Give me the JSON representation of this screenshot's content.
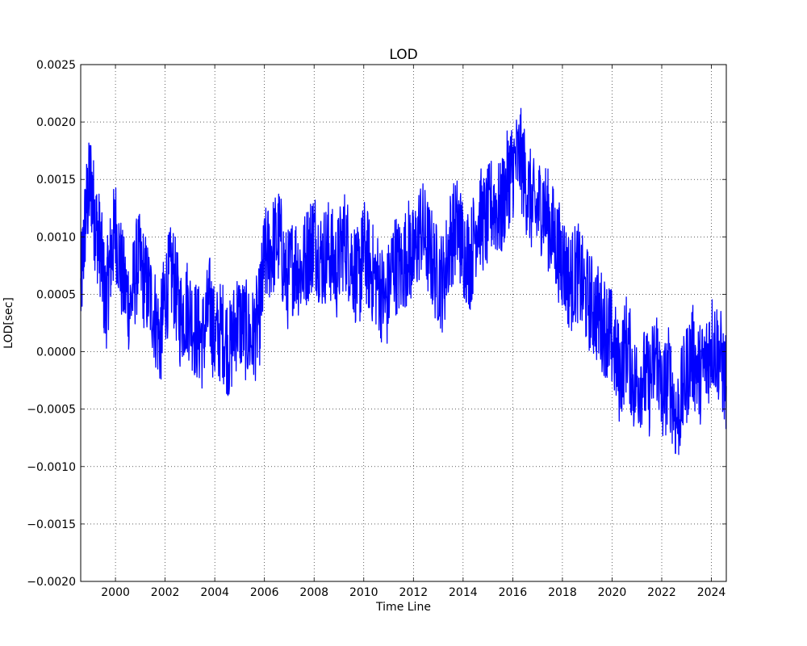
{
  "chart_data": {
    "type": "line",
    "title": "LOD",
    "xlabel": "Time Line",
    "ylabel": "LOD[sec]",
    "xlim": [
      1998.6,
      2024.6
    ],
    "ylim": [
      -0.002,
      0.0025
    ],
    "xticks": [
      2000,
      2002,
      2004,
      2006,
      2008,
      2010,
      2012,
      2014,
      2016,
      2018,
      2020,
      2022,
      2024
    ],
    "xtick_labels": [
      "2000",
      "2002",
      "2004",
      "2006",
      "2008",
      "2010",
      "2012",
      "2014",
      "2016",
      "2018",
      "2020",
      "2022",
      "2024"
    ],
    "yticks": [
      -0.002,
      -0.0015,
      -0.001,
      -0.0005,
      0.0,
      0.0005,
      0.001,
      0.0015,
      0.002,
      0.0025
    ],
    "ytick_labels": [
      "−0.0020",
      "−0.0015",
      "−0.0010",
      "−0.0005",
      "0.0000",
      "0.0005",
      "0.0010",
      "0.0015",
      "0.0020",
      "0.0025"
    ],
    "grid": true,
    "line_color": "#0000ff",
    "series": [
      {
        "x": [
          1998.6,
          1998.8,
          1999.0,
          1999.2,
          1999.4,
          1999.6,
          1999.8,
          2000.0,
          2000.3,
          2000.6,
          2000.9,
          2001.2,
          2001.5,
          2001.8,
          2002.0,
          2002.3,
          2002.6,
          2002.9,
          2003.2,
          2003.5,
          2003.8,
          2004.0,
          2004.3,
          2004.6,
          2004.9,
          2005.2,
          2005.5,
          2005.8,
          2006.0,
          2006.3,
          2006.6,
          2006.9,
          2007.2,
          2007.5,
          2007.8,
          2008.0,
          2008.3,
          2008.6,
          2008.9,
          2009.2,
          2009.5,
          2009.8,
          2010.0,
          2010.3,
          2010.6,
          2010.9,
          2011.2,
          2011.5,
          2011.8,
          2012.0,
          2012.3,
          2012.6,
          2012.9,
          2013.2,
          2013.5,
          2013.8,
          2014.0,
          2014.3,
          2014.6,
          2014.9,
          2015.2,
          2015.5,
          2015.8,
          2016.0,
          2016.3,
          2016.6,
          2016.9,
          2017.2,
          2017.5,
          2017.8,
          2018.0,
          2018.3,
          2018.6,
          2018.9,
          2019.2,
          2019.5,
          2019.8,
          2020.0,
          2020.3,
          2020.6,
          2020.9,
          2021.2,
          2021.5,
          2021.8,
          2022.0,
          2022.3,
          2022.6,
          2022.9,
          2023.2,
          2023.5,
          2023.8,
          2024.0,
          2024.3,
          2024.6
        ],
        "y": [
          0.0005,
          0.0012,
          0.0015,
          0.0011,
          0.0009,
          0.0004,
          0.0008,
          0.0011,
          0.0006,
          0.0004,
          0.0008,
          0.0006,
          0.0004,
          0.0001,
          0.0005,
          0.0007,
          0.0003,
          0.0004,
          0.0002,
          0.0001,
          0.0004,
          0.0001,
          0.0002,
          0.0,
          0.0003,
          0.0002,
          0.0001,
          0.0003,
          0.0008,
          0.0009,
          0.001,
          0.0006,
          0.0008,
          0.0007,
          0.0009,
          0.001,
          0.0008,
          0.0009,
          0.0007,
          0.001,
          0.0008,
          0.0006,
          0.0009,
          0.0007,
          0.0006,
          0.0004,
          0.0008,
          0.0007,
          0.0009,
          0.0008,
          0.0011,
          0.0009,
          0.0007,
          0.0006,
          0.001,
          0.0011,
          0.0009,
          0.0008,
          0.0012,
          0.0011,
          0.0013,
          0.0012,
          0.0015,
          0.0016,
          0.0017,
          0.0014,
          0.0012,
          0.0013,
          0.0011,
          0.0009,
          0.0008,
          0.0006,
          0.0007,
          0.0005,
          0.0004,
          0.0003,
          0.0002,
          0.0001,
          -0.0002,
          0.0001,
          -0.0003,
          -0.0002,
          -0.0003,
          0.0,
          -0.0004,
          -0.0002,
          -0.0006,
          -0.0003,
          0.0,
          -0.0002,
          -0.0001,
          0.0001,
          0.0,
          -0.0003
        ],
        "noise_amplitude": 0.00045,
        "points_per_segment": 22
      }
    ]
  }
}
